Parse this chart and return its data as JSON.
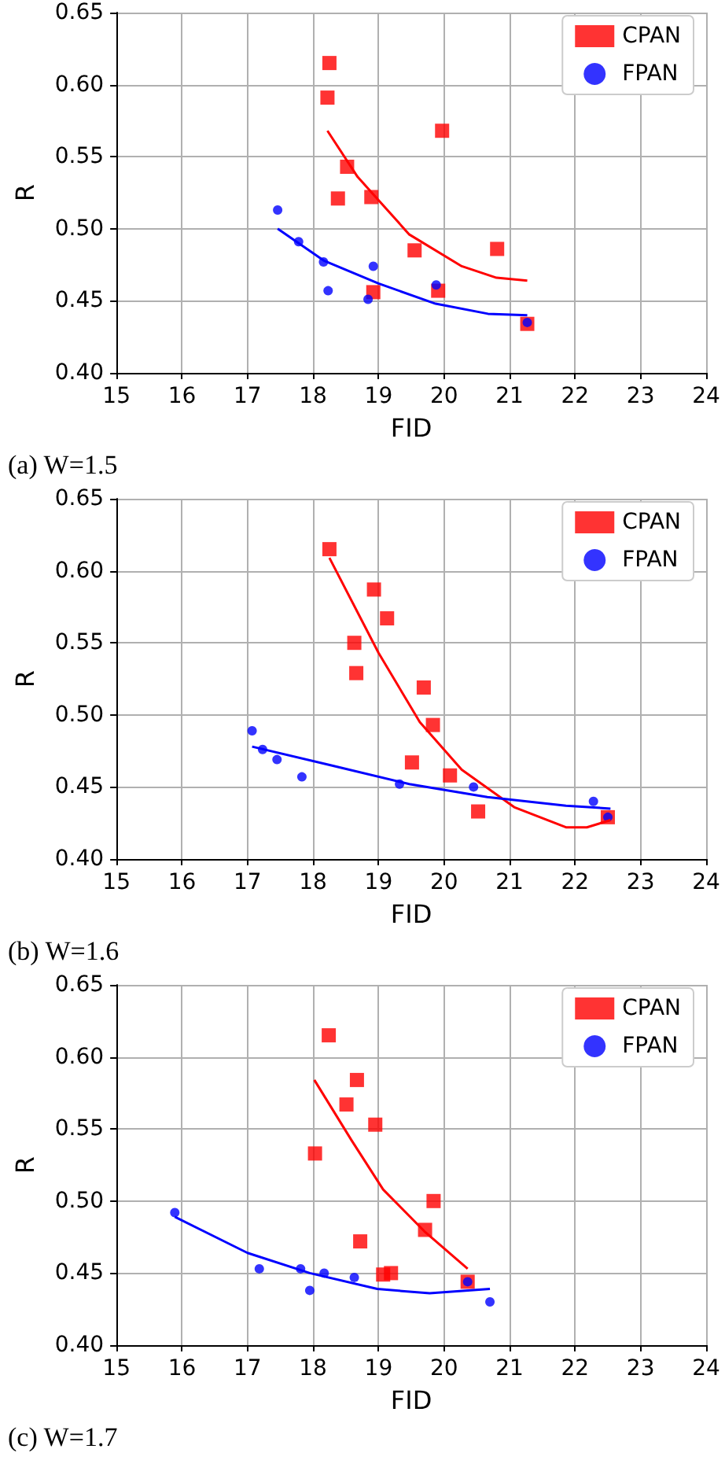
{
  "chart_data": [
    {
      "type": "scatter",
      "title": "(a) W=1.5",
      "xlabel": "FID",
      "ylabel": "R",
      "xlim": [
        15,
        24
      ],
      "xticks": [
        15,
        16,
        17,
        18,
        19,
        20,
        21,
        22,
        23,
        24
      ],
      "ylim": [
        0.4,
        0.65
      ],
      "yticks": [
        {
          "value": 0.4,
          "label": "0.40"
        },
        {
          "value": 0.45,
          "label": "0.45"
        },
        {
          "value": 0.5,
          "label": "0.50"
        },
        {
          "value": 0.55,
          "label": "0.55"
        },
        {
          "value": 0.6,
          "label": "0.60"
        },
        {
          "value": 0.65,
          "label": "0.65"
        }
      ],
      "grid": true,
      "legend": "top right",
      "series": [
        {
          "name": "CPAN",
          "color": "#ff0000",
          "marker": "square",
          "x": [
            18.25,
            18.22,
            18.52,
            18.38,
            18.89,
            19.97,
            19.55,
            20.81,
            18.92,
            19.91,
            21.27
          ],
          "values": [
            0.615,
            0.591,
            0.543,
            0.521,
            0.522,
            0.568,
            0.485,
            0.486,
            0.456,
            0.457,
            0.434
          ]
        },
        {
          "name": "FPAN",
          "color": "#0000ff",
          "marker": "circle",
          "x": [
            17.46,
            17.78,
            18.16,
            18.23,
            18.92,
            18.84,
            19.88,
            21.27
          ],
          "values": [
            0.513,
            0.491,
            0.477,
            0.457,
            0.474,
            0.451,
            0.461,
            0.435
          ]
        },
        {
          "type": "line",
          "color": "#ff0000",
          "marker": "none",
          "x": [
            18.22,
            18.68,
            19.47,
            20.27,
            20.8,
            21.27
          ],
          "values": [
            0.568,
            0.536,
            0.496,
            0.474,
            0.466,
            0.464
          ]
        },
        {
          "type": "line",
          "color": "#0000ff",
          "marker": "none",
          "x": [
            17.46,
            18.16,
            19.0,
            19.87,
            20.67,
            21.27
          ],
          "values": [
            0.5,
            0.478,
            0.462,
            0.448,
            0.441,
            0.44
          ]
        }
      ]
    },
    {
      "type": "scatter",
      "title": "(b) W=1.6",
      "xlabel": "FID",
      "ylabel": "R",
      "xlim": [
        15,
        24
      ],
      "xticks": [
        15,
        16,
        17,
        18,
        19,
        20,
        21,
        22,
        23,
        24
      ],
      "ylim": [
        0.4,
        0.65
      ],
      "yticks": [
        {
          "value": 0.4,
          "label": "0.40"
        },
        {
          "value": 0.45,
          "label": "0.45"
        },
        {
          "value": 0.5,
          "label": "0.50"
        },
        {
          "value": 0.55,
          "label": "0.55"
        },
        {
          "value": 0.6,
          "label": "0.60"
        },
        {
          "value": 0.65,
          "label": "0.65"
        }
      ],
      "grid": true,
      "legend": "top right",
      "series": [
        {
          "name": "CPAN",
          "color": "#ff0000",
          "marker": "square",
          "x": [
            18.25,
            18.93,
            19.13,
            18.63,
            18.66,
            19.69,
            19.83,
            19.51,
            20.09,
            20.52,
            22.5
          ],
          "values": [
            0.615,
            0.587,
            0.567,
            0.55,
            0.529,
            0.519,
            0.493,
            0.467,
            0.458,
            0.433,
            0.429
          ]
        },
        {
          "name": "FPAN",
          "color": "#0000ff",
          "marker": "circle",
          "x": [
            17.07,
            17.23,
            17.45,
            17.83,
            19.32,
            20.45,
            22.28,
            22.5
          ],
          "values": [
            0.489,
            0.476,
            0.469,
            0.457,
            0.452,
            0.45,
            0.44,
            0.429
          ]
        },
        {
          "type": "line",
          "color": "#ff0000",
          "marker": "none",
          "x": [
            18.25,
            19.0,
            19.63,
            20.27,
            21.07,
            21.86,
            22.18,
            22.54
          ],
          "values": [
            0.609,
            0.543,
            0.495,
            0.462,
            0.436,
            0.422,
            0.422,
            0.427
          ]
        },
        {
          "type": "line",
          "color": "#0000ff",
          "marker": "none",
          "x": [
            17.07,
            18.28,
            19.47,
            20.66,
            21.86,
            22.54
          ],
          "values": [
            0.478,
            0.465,
            0.452,
            0.443,
            0.437,
            0.435
          ]
        }
      ]
    },
    {
      "type": "scatter",
      "title": "(c) W=1.7",
      "xlabel": "FID",
      "ylabel": "R",
      "xlim": [
        15,
        24
      ],
      "xticks": [
        15,
        16,
        17,
        18,
        19,
        20,
        21,
        22,
        23,
        24
      ],
      "ylim": [
        0.4,
        0.65
      ],
      "yticks": [
        {
          "value": 0.4,
          "label": "0.40"
        },
        {
          "value": 0.45,
          "label": "0.45"
        },
        {
          "value": 0.5,
          "label": "0.50"
        },
        {
          "value": 0.55,
          "label": "0.55"
        },
        {
          "value": 0.6,
          "label": "0.60"
        },
        {
          "value": 0.65,
          "label": "0.65"
        }
      ],
      "grid": true,
      "legend": "top right",
      "series": [
        {
          "name": "CPAN",
          "color": "#ff0000",
          "marker": "square",
          "x": [
            18.24,
            18.67,
            18.51,
            18.95,
            18.03,
            19.84,
            19.71,
            18.72,
            19.07,
            19.19,
            20.36
          ],
          "values": [
            0.615,
            0.584,
            0.567,
            0.553,
            0.533,
            0.5,
            0.48,
            0.472,
            0.449,
            0.45,
            0.444
          ]
        },
        {
          "name": "FPAN",
          "color": "#0000ff",
          "marker": "circle",
          "x": [
            15.89,
            17.18,
            17.81,
            18.17,
            17.95,
            18.63,
            20.36,
            20.7
          ],
          "values": [
            0.492,
            0.453,
            0.453,
            0.45,
            0.438,
            0.447,
            0.444,
            0.43
          ]
        },
        {
          "type": "line",
          "color": "#ff0000",
          "marker": "none",
          "x": [
            18.02,
            18.59,
            19.07,
            19.7,
            20.36
          ],
          "values": [
            0.584,
            0.542,
            0.508,
            0.479,
            0.453
          ]
        },
        {
          "type": "line",
          "color": "#0000ff",
          "marker": "none",
          "x": [
            15.89,
            17.0,
            17.95,
            18.98,
            19.78,
            20.7
          ],
          "values": [
            0.489,
            0.464,
            0.45,
            0.439,
            0.436,
            0.439
          ]
        }
      ]
    }
  ]
}
